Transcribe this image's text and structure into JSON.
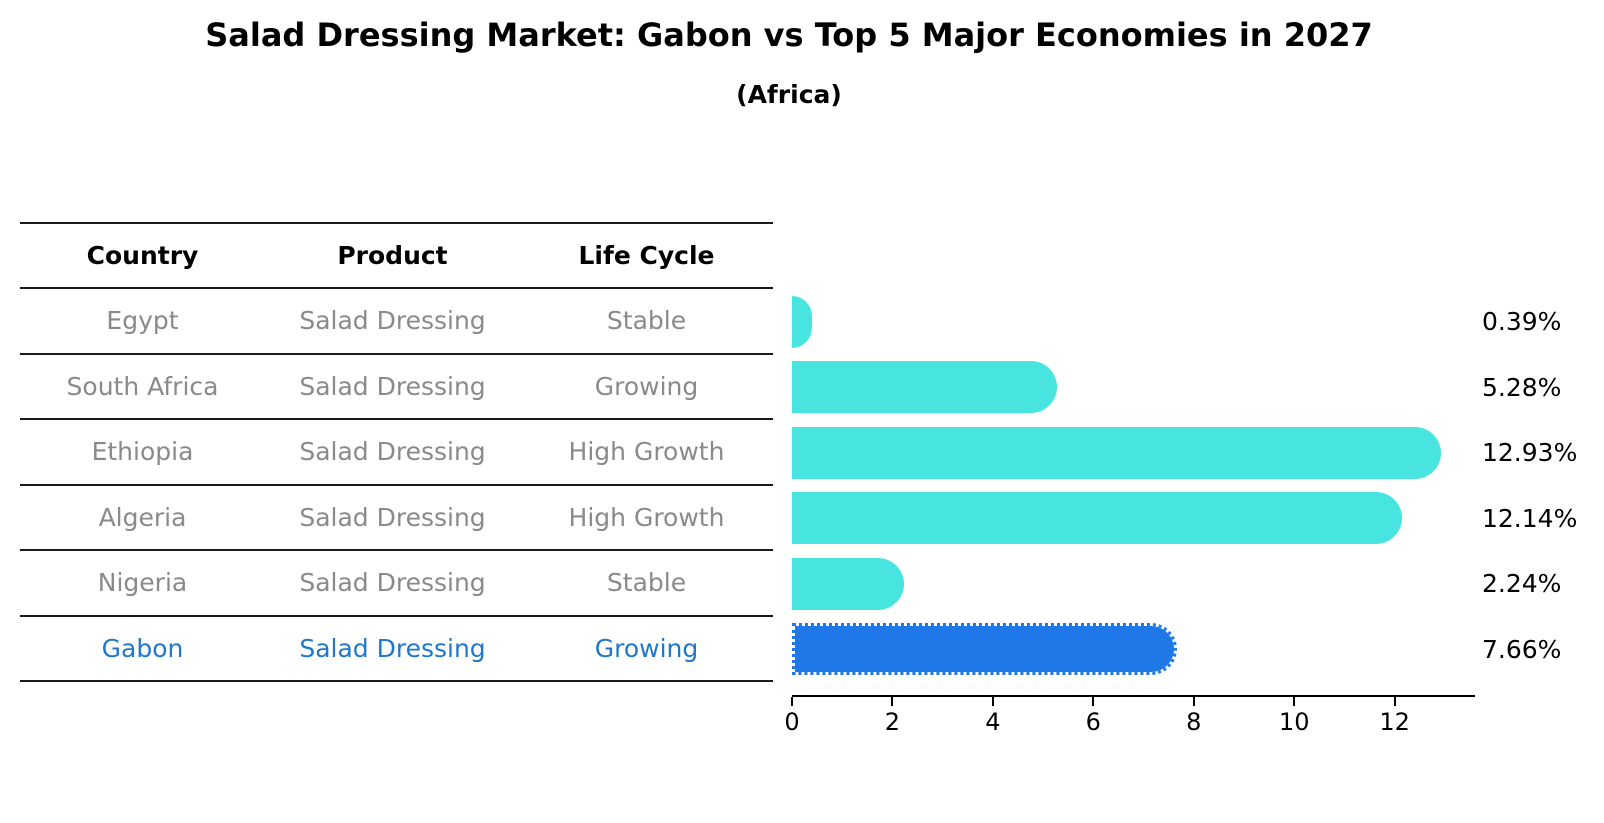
{
  "title": "Salad Dressing Market: Gabon vs Top 5 Major Economies in 2027",
  "subtitle": "(Africa)",
  "colors": {
    "bar": "#48E4E0",
    "highlight_bar": "#1E78E8",
    "highlight_text": "#1F78CC",
    "muted_text": "#8A8A8A",
    "rule": "#1a1a1a"
  },
  "table": {
    "columns": [
      "Country",
      "Product",
      "Life Cycle"
    ],
    "rows": [
      {
        "country": "Egypt",
        "product": "Salad Dressing",
        "life_cycle": "Stable",
        "highlight": false
      },
      {
        "country": "South Africa",
        "product": "Salad Dressing",
        "life_cycle": "Growing",
        "highlight": false
      },
      {
        "country": "Ethiopia",
        "product": "Salad Dressing",
        "life_cycle": "High Growth",
        "highlight": false
      },
      {
        "country": "Algeria",
        "product": "Salad Dressing",
        "life_cycle": "High Growth",
        "highlight": false
      },
      {
        "country": "Nigeria",
        "product": "Salad Dressing",
        "life_cycle": "Stable",
        "highlight": false
      },
      {
        "country": "Gabon",
        "product": "Salad Dressing",
        "life_cycle": "Growing",
        "highlight": true
      }
    ]
  },
  "chart_data": {
    "type": "bar",
    "orientation": "horizontal",
    "title": "Salad Dressing Market: Gabon vs Top 5 Major Economies in 2027",
    "subtitle": "(Africa)",
    "categories": [
      "Egypt",
      "South Africa",
      "Ethiopia",
      "Algeria",
      "Nigeria",
      "Gabon"
    ],
    "values": [
      0.39,
      5.28,
      12.93,
      12.14,
      2.24,
      7.66
    ],
    "value_labels": [
      "0.39%",
      "5.28%",
      "12.93%",
      "12.14%",
      "2.24%",
      "7.66%"
    ],
    "unit": "%",
    "highlighted_category": "Gabon",
    "xlabel": "",
    "ylabel": "",
    "xlim": [
      0,
      13.6
    ],
    "x_ticks": [
      0,
      2,
      4,
      6,
      8,
      10,
      12
    ],
    "grid": false,
    "legend": false
  }
}
